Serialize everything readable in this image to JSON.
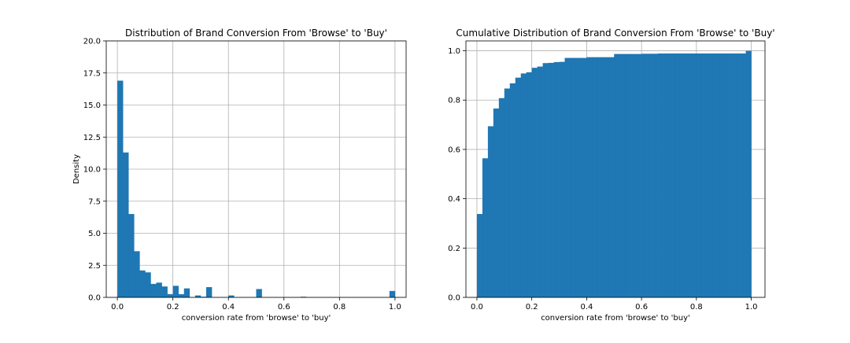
{
  "chart_data": [
    {
      "type": "bar",
      "title": "Distribution of Brand Conversion From 'Browse' to 'Buy'",
      "xlabel": "conversion rate from 'browse' to 'buy'",
      "ylabel": "Density",
      "xlim": [
        -0.04,
        1.04
      ],
      "ylim": [
        0,
        20
      ],
      "xticks": [
        0.0,
        0.2,
        0.4,
        0.6,
        0.8,
        1.0
      ],
      "yticks": [
        0.0,
        2.5,
        5.0,
        7.5,
        10.0,
        12.5,
        15.0,
        17.5,
        20.0
      ],
      "xtick_labels": [
        "0.0",
        "0.2",
        "0.4",
        "0.6",
        "0.8",
        "1.0"
      ],
      "ytick_labels": [
        "0.0",
        "2.5",
        "5.0",
        "7.5",
        "10.0",
        "12.5",
        "15.0",
        "17.5",
        "20.0"
      ],
      "grid": true,
      "color": "#1f77b4",
      "bin_width": 0.02,
      "bin_starts": [
        0.0,
        0.02,
        0.04,
        0.06,
        0.08,
        0.1,
        0.12,
        0.14,
        0.16,
        0.18,
        0.2,
        0.22,
        0.24,
        0.28,
        0.3,
        0.32,
        0.4,
        0.5,
        0.66,
        0.98
      ],
      "values": [
        16.9,
        11.3,
        6.5,
        3.6,
        2.1,
        1.95,
        1.05,
        1.15,
        0.85,
        0.25,
        0.9,
        0.25,
        0.7,
        0.15,
        0.05,
        0.8,
        0.15,
        0.65,
        0.05,
        0.5
      ]
    },
    {
      "type": "bar",
      "title": "Cumulative Distribution of Brand Conversion From 'Browse' to 'Buy'",
      "xlabel": "conversion rate from 'browse' to 'buy'",
      "ylabel": "",
      "xlim": [
        -0.04,
        1.05
      ],
      "ylim": [
        0,
        1.04
      ],
      "xticks": [
        0.0,
        0.2,
        0.4,
        0.6,
        0.8,
        1.0
      ],
      "yticks": [
        0.0,
        0.2,
        0.4,
        0.6,
        0.8,
        1.0
      ],
      "xtick_labels": [
        "0.0",
        "0.2",
        "0.4",
        "0.6",
        "0.8",
        "1.0"
      ],
      "ytick_labels": [
        "0.0",
        "0.2",
        "0.4",
        "0.6",
        "0.8",
        "1.0"
      ],
      "grid": true,
      "color": "#1f77b4",
      "bin_width": 0.02,
      "bin_starts": [
        0.0,
        0.02,
        0.04,
        0.06,
        0.08,
        0.1,
        0.12,
        0.14,
        0.16,
        0.18,
        0.2,
        0.22,
        0.24,
        0.26,
        0.28,
        0.3,
        0.32,
        0.34,
        0.36,
        0.38,
        0.4,
        0.42,
        0.44,
        0.46,
        0.48,
        0.5,
        0.52,
        0.54,
        0.56,
        0.58,
        0.6,
        0.62,
        0.64,
        0.66,
        0.68,
        0.7,
        0.72,
        0.74,
        0.76,
        0.78,
        0.8,
        0.82,
        0.84,
        0.86,
        0.88,
        0.9,
        0.92,
        0.94,
        0.96,
        0.98
      ],
      "values": [
        0.338,
        0.564,
        0.694,
        0.766,
        0.808,
        0.847,
        0.868,
        0.891,
        0.908,
        0.913,
        0.931,
        0.936,
        0.95,
        0.951,
        0.954,
        0.955,
        0.971,
        0.971,
        0.971,
        0.971,
        0.974,
        0.974,
        0.974,
        0.974,
        0.974,
        0.987,
        0.987,
        0.987,
        0.987,
        0.987,
        0.988,
        0.988,
        0.988,
        0.989,
        0.989,
        0.989,
        0.989,
        0.989,
        0.989,
        0.989,
        0.989,
        0.989,
        0.989,
        0.989,
        0.989,
        0.989,
        0.989,
        0.989,
        0.989,
        1.0
      ]
    }
  ]
}
